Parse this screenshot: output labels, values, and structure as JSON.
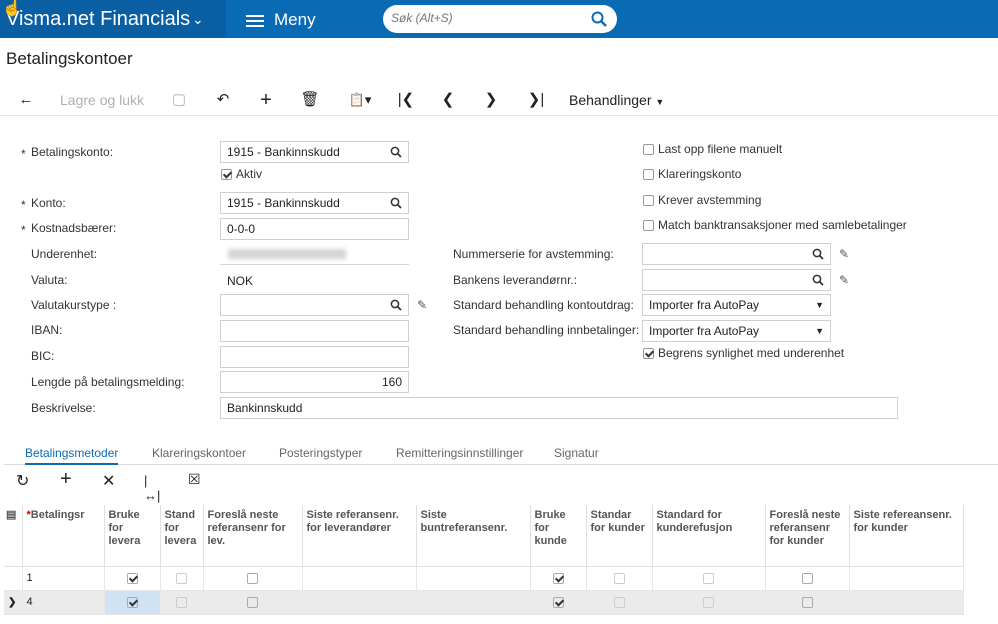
{
  "header": {
    "app_name": "Visma.net Financials",
    "menu_label": "Meny",
    "search_placeholder": "Søk (Alt+S)"
  },
  "page": {
    "title": "Betalingskontoer"
  },
  "toolbar": {
    "save_close": "Lagre og lukk",
    "actions": "Behandlinger"
  },
  "form": {
    "left": {
      "payment_account_label": "Betalingskonto:",
      "payment_account_value": "1915 - Bankinnskudd",
      "active_label": "Aktiv",
      "account_label": "Konto:",
      "account_value": "1915 - Bankinnskudd",
      "cost_bearer_label": "Kostnadsbærer:",
      "cost_bearer_value": "0-0-0",
      "subunit_label": "Underenhet:",
      "currency_label": "Valuta:",
      "currency_value": "NOK",
      "rate_type_label": "Valutakurstype :",
      "iban_label": "IBAN:",
      "bic_label": "BIC:",
      "msg_length_label": "Lengde på betalingsmelding:",
      "msg_length_value": "160",
      "description_label": "Beskrivelse:",
      "description_value": "Bankinnskudd"
    },
    "middle": {
      "number_series_label": "Nummerserie for avstemming:",
      "bank_vendor_label": "Bankens leverandørnr.:",
      "std_statement_label": "Standard behandling kontoutdrag:",
      "std_statement_value": "Importer fra AutoPay",
      "std_payments_label": "Standard behandling innbetalinger:",
      "std_payments_value": "Importer fra AutoPay",
      "restrict_label": "Begrens synlighet med underenhet"
    },
    "right": {
      "upload_manual": "Last opp filene manuelt",
      "clearing_account": "Klareringskonto",
      "requires_reconciliation": "Krever avstemming",
      "match_transactions": "Match banktransaksjoner med samlebetalinger"
    }
  },
  "tabs": [
    "Betalingsmetoder",
    "Klareringskontoer",
    "Posteringstyper",
    "Remitteringsinnstillinger",
    "Signatur"
  ],
  "grid": {
    "columns": [
      "Betalingsr",
      "Bruke for levera",
      "Stand for levera",
      "Foreslå neste referansenr for lev.",
      "Siste referansenr. for leverandører",
      "Siste buntreferansenr.",
      "Bruke for kunde",
      "Standar for kunder",
      "Standard for kunderefusjon",
      "Foreslå neste referansenr for kunder",
      "Siste refereansenr. for kunder"
    ],
    "rows": [
      {
        "id": "1"
      },
      {
        "id": "4"
      }
    ]
  }
}
